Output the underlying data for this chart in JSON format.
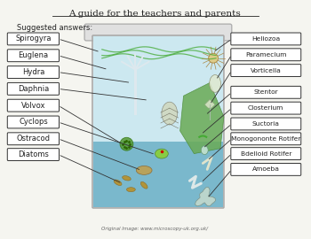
{
  "title": "A guide for the teachers and parents",
  "subtitle": "Suggested answers:",
  "left_labels": [
    "Spirogyra",
    "Euglena",
    "Hydra",
    "Daphnia",
    "Volvox",
    "Cyclops",
    "Ostracod",
    "Diatoms"
  ],
  "right_labels": [
    "Heliozoa",
    "Paramecium",
    "Vorticella",
    "Stentor",
    "Closterium",
    "Suctoria",
    "Monogononte Rotifer",
    "Bdelloid Rotifer",
    "Amoeba"
  ],
  "bg_color": "#f5f5f0",
  "box_color": "#ffffff",
  "box_edge": "#333333",
  "text_color": "#222222",
  "jar_light_blue": "#cce8f0",
  "jar_dark_blue": "#7ab8cc",
  "jar_outline": "#aaaaaa",
  "caption": "Original Image: www.microscopy-uk.org.uk/",
  "title_fontsize": 7.5,
  "label_fontsize": 6.0
}
